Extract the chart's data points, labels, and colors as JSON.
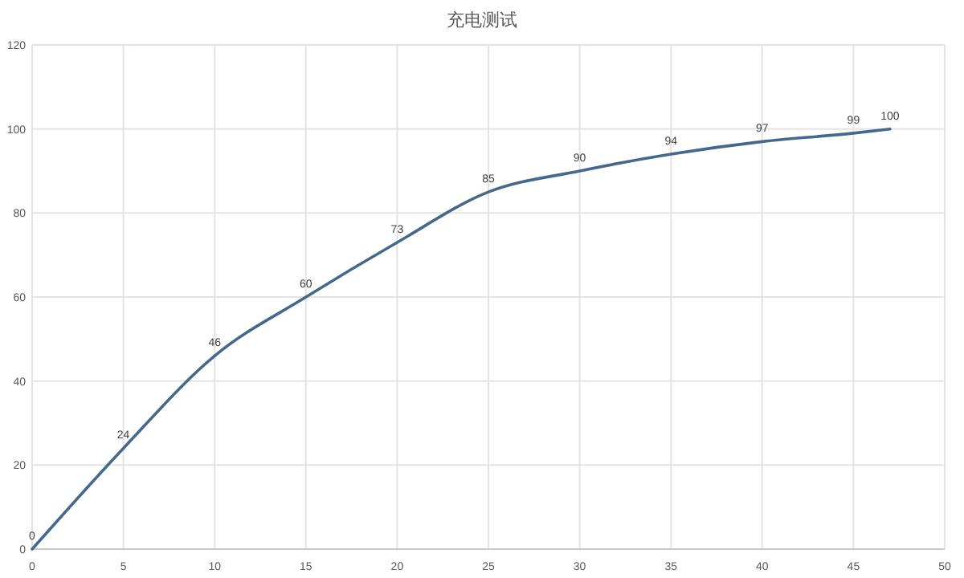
{
  "chart_data": {
    "type": "line",
    "title": "充电测试",
    "x": [
      0,
      5,
      10,
      15,
      20,
      25,
      30,
      35,
      40,
      45,
      47
    ],
    "series": [
      {
        "color": "#44698d",
        "values": [
          0,
          24,
          46,
          60,
          73,
          85,
          90,
          94,
          97,
          99,
          100
        ]
      }
    ],
    "xlim": [
      0,
      50
    ],
    "xticks": [
      0,
      5,
      10,
      15,
      20,
      25,
      30,
      35,
      40,
      45,
      50
    ],
    "ylim": [
      0,
      120
    ],
    "yticks": [
      0,
      20,
      40,
      60,
      80,
      100,
      120
    ],
    "grid": true,
    "data_labels": true,
    "marker": "none",
    "line_style": "solid"
  }
}
